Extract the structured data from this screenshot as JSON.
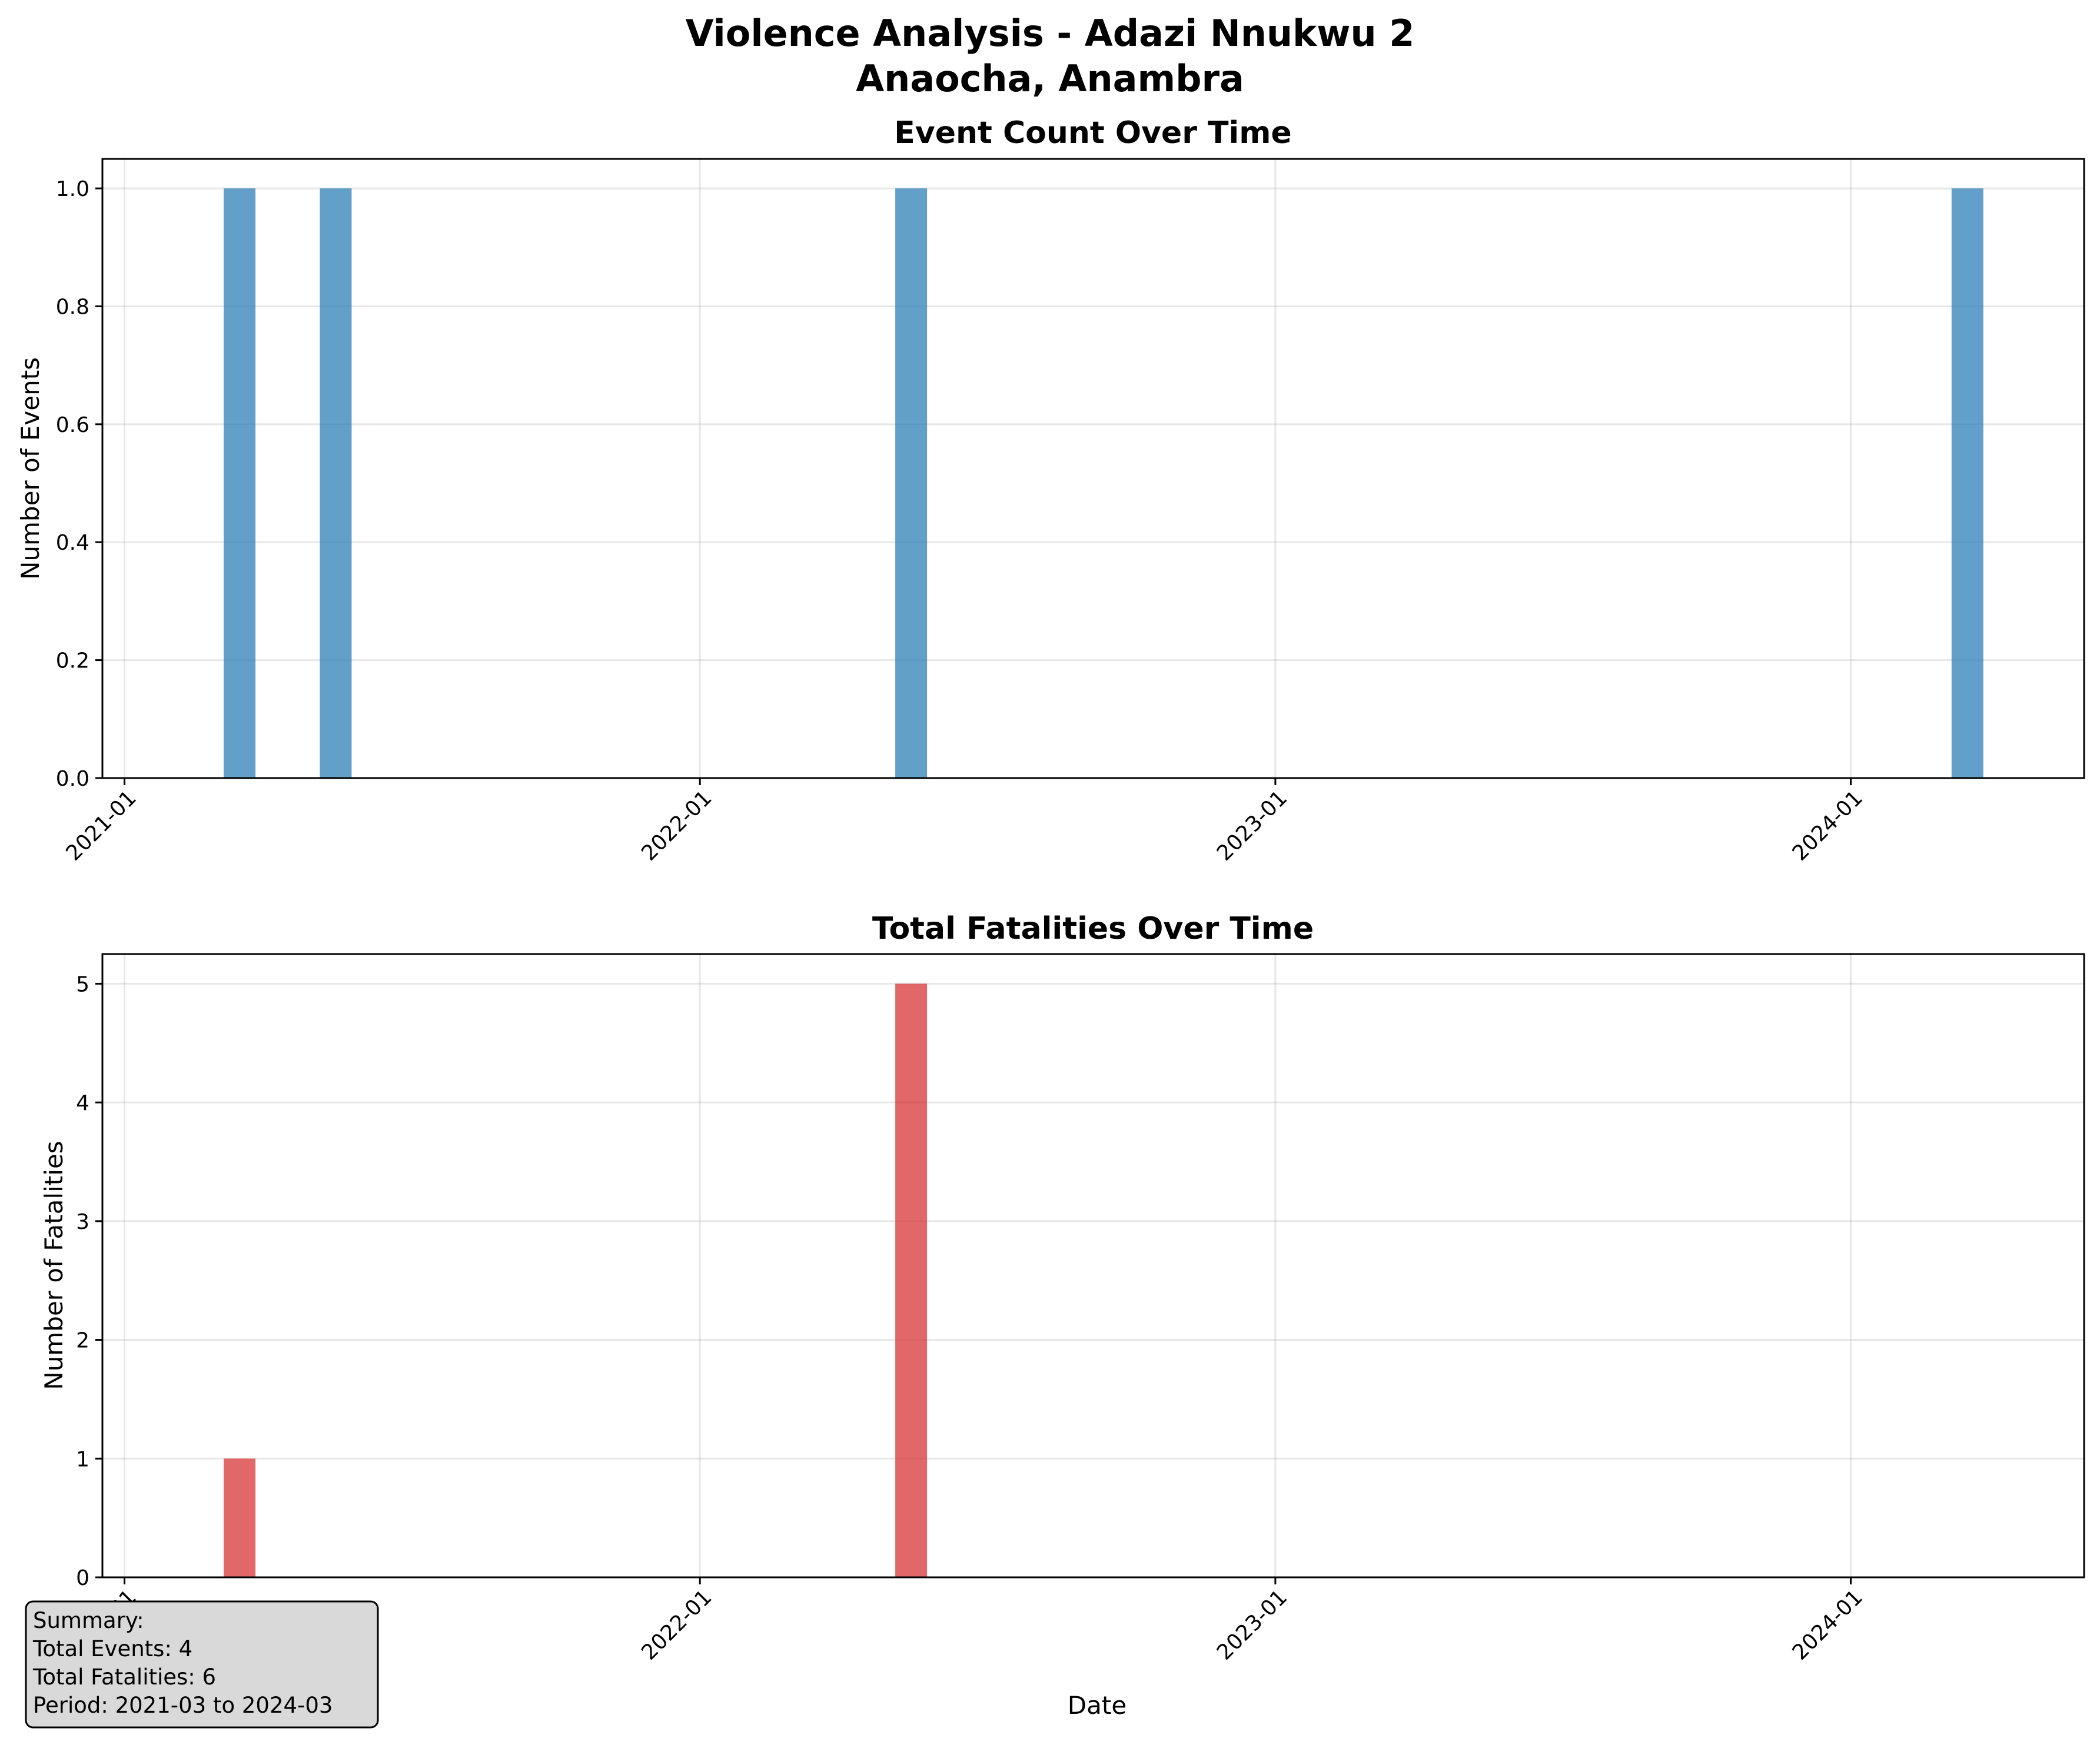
{
  "figure": {
    "title_line1": "Violence Analysis - Adazi Nnukwu 2",
    "title_line2": "Anaocha, Anambra"
  },
  "chart_data": [
    {
      "type": "bar",
      "title": "Event Count Over Time",
      "xlabel": "",
      "ylabel": "Number of Events",
      "x": [
        "2021-03",
        "2021-05",
        "2022-05",
        "2024-03"
      ],
      "values": [
        1,
        1,
        1,
        1
      ],
      "xlim": [
        "2020-12-18",
        "2024-05-28"
      ],
      "ylim": [
        0,
        1.05
      ],
      "xticks": [
        "2021-01",
        "2022-01",
        "2023-01",
        "2024-01"
      ],
      "yticks": [
        "0.0",
        "0.2",
        "0.4",
        "0.6",
        "0.8",
        "1.0"
      ],
      "color": "#1f77b4",
      "grid": true
    },
    {
      "type": "bar",
      "title": "Total Fatalities Over Time",
      "xlabel": "Date",
      "ylabel": "Number of Fatalities",
      "x": [
        "2021-03",
        "2022-05"
      ],
      "values": [
        1,
        5
      ],
      "xlim": [
        "2020-12-18",
        "2024-05-28"
      ],
      "ylim": [
        0,
        5.25
      ],
      "xticks": [
        "2021-01",
        "2022-01",
        "2023-01",
        "2024-01"
      ],
      "yticks": [
        "0",
        "1",
        "2",
        "3",
        "4",
        "5"
      ],
      "color": "#d62728",
      "grid": true
    }
  ],
  "summary": {
    "line1": "Summary:",
    "line2": "Total Events: 4",
    "line3": "Total Fatalities: 6",
    "line4": "Period: 2021-03 to 2024-03"
  }
}
